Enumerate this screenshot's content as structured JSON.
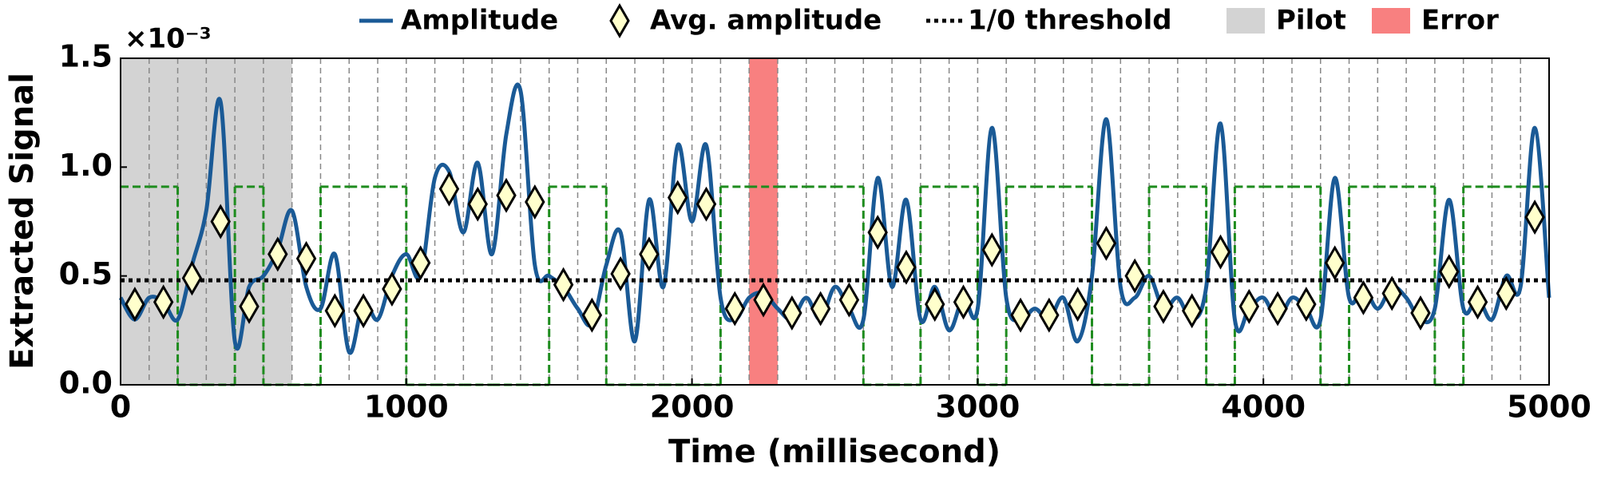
{
  "chart_data": {
    "type": "line",
    "x_label": "Time (millisecond)",
    "y_label": "Extracted Signal",
    "y_offset_label": "×10⁻³",
    "xlim": [
      0,
      5000
    ],
    "ylim": [
      0,
      1.5
    ],
    "xticks": [
      0,
      1000,
      2000,
      3000,
      4000,
      5000
    ],
    "yticks": [
      {
        "value": 0,
        "label": "0.0"
      },
      0.5,
      {
        "value": 1,
        "label": "1.0"
      },
      1.5
    ],
    "spans": [
      {
        "name": "Pilot",
        "x": [
          0,
          600
        ],
        "color": "#d3d3d3"
      },
      {
        "name": "Error",
        "x": [
          2200,
          2300
        ],
        "color": "#f88080"
      }
    ],
    "series": [
      {
        "name": "Amplitude",
        "color": "#1a5a96",
        "style": "smooth",
        "x": [
          0,
          50,
          100,
          150,
          200,
          250,
          300,
          350,
          400,
          450,
          500,
          550,
          600,
          650,
          700,
          750,
          800,
          850,
          900,
          950,
          1000,
          1050,
          1100,
          1150,
          1200,
          1250,
          1300,
          1350,
          1400,
          1450,
          1500,
          1550,
          1600,
          1650,
          1700,
          1750,
          1800,
          1850,
          1900,
          1950,
          2000,
          2050,
          2100,
          2150,
          2200,
          2250,
          2300,
          2350,
          2400,
          2450,
          2500,
          2550,
          2600,
          2650,
          2700,
          2750,
          2800,
          2850,
          2900,
          2950,
          3000,
          3050,
          3100,
          3150,
          3200,
          3250,
          3300,
          3350,
          3400,
          3450,
          3500,
          3550,
          3600,
          3650,
          3700,
          3750,
          3800,
          3850,
          3900,
          3950,
          4000,
          4050,
          4100,
          4150,
          4200,
          4250,
          4300,
          4350,
          4400,
          4450,
          4500,
          4550,
          4600,
          4650,
          4700,
          4750,
          4800,
          4850,
          4900,
          4950,
          5000
        ],
        "values": [
          0.4,
          0.3,
          0.4,
          0.38,
          0.3,
          0.55,
          0.8,
          1.3,
          0.2,
          0.45,
          0.5,
          0.62,
          0.8,
          0.45,
          0.35,
          0.6,
          0.15,
          0.38,
          0.3,
          0.5,
          0.6,
          0.5,
          0.95,
          0.98,
          0.7,
          1.02,
          0.6,
          1.15,
          1.35,
          0.55,
          0.5,
          0.45,
          0.35,
          0.28,
          0.55,
          0.7,
          0.2,
          0.85,
          0.45,
          1.1,
          0.75,
          1.1,
          0.4,
          0.3,
          0.4,
          0.42,
          0.35,
          0.3,
          0.4,
          0.3,
          0.45,
          0.35,
          0.3,
          0.95,
          0.45,
          0.85,
          0.3,
          0.45,
          0.25,
          0.4,
          0.35,
          1.18,
          0.4,
          0.3,
          0.35,
          0.3,
          0.4,
          0.2,
          0.5,
          1.22,
          0.45,
          0.4,
          0.5,
          0.35,
          0.4,
          0.3,
          0.45,
          1.2,
          0.3,
          0.35,
          0.4,
          0.3,
          0.4,
          0.35,
          0.3,
          0.95,
          0.4,
          0.45,
          0.35,
          0.45,
          0.4,
          0.3,
          0.35,
          0.85,
          0.35,
          0.4,
          0.3,
          0.5,
          0.45,
          1.18,
          0.4
        ]
      },
      {
        "name": "Avg. amplitude",
        "color": "#ffffcc",
        "style": "diamond",
        "x": [
          50,
          150,
          250,
          350,
          450,
          550,
          650,
          750,
          850,
          950,
          1050,
          1150,
          1250,
          1350,
          1450,
          1550,
          1650,
          1750,
          1850,
          1950,
          2050,
          2150,
          2250,
          2350,
          2450,
          2550,
          2650,
          2750,
          2850,
          2950,
          3050,
          3150,
          3250,
          3350,
          3450,
          3550,
          3650,
          3750,
          3850,
          3950,
          4050,
          4150,
          4250,
          4350,
          4450,
          4550,
          4650,
          4750,
          4850,
          4950
        ],
        "values": [
          0.37,
          0.38,
          0.49,
          0.75,
          0.36,
          0.6,
          0.58,
          0.34,
          0.34,
          0.44,
          0.56,
          0.9,
          0.83,
          0.87,
          0.84,
          0.46,
          0.32,
          0.51,
          0.6,
          0.86,
          0.83,
          0.35,
          0.39,
          0.33,
          0.35,
          0.39,
          0.7,
          0.54,
          0.37,
          0.38,
          0.62,
          0.32,
          0.32,
          0.37,
          0.65,
          0.5,
          0.36,
          0.34,
          0.61,
          0.36,
          0.35,
          0.37,
          0.56,
          0.4,
          0.42,
          0.33,
          0.52,
          0.38,
          0.42,
          0.77
        ]
      },
      {
        "name": "1/0 threshold",
        "color": "#000000",
        "style": "hline",
        "y": 0.48
      },
      {
        "color": "#1e8c1e",
        "style": "step",
        "x": [
          0,
          100,
          200,
          300,
          400,
          500,
          600,
          700,
          800,
          900,
          1000,
          1100,
          1200,
          1300,
          1400,
          1500,
          1600,
          1700,
          1800,
          1900,
          2000,
          2100,
          2200,
          2300,
          2400,
          2500,
          2600,
          2700,
          2800,
          2900,
          3000,
          3100,
          3200,
          3300,
          3400,
          3500,
          3600,
          3700,
          3800,
          3900,
          4000,
          4100,
          4200,
          4300,
          4400,
          4500,
          4600,
          4700,
          4800,
          4900
        ],
        "values": [
          0.91,
          0.91,
          0,
          0,
          0.91,
          0,
          0,
          0.91,
          0.91,
          0.91,
          0,
          0,
          0,
          0,
          0,
          0.91,
          0.91,
          0,
          0,
          0,
          0,
          0.91,
          0.91,
          0.91,
          0.91,
          0.91,
          0,
          0,
          0.91,
          0.91,
          0,
          0.91,
          0.91,
          0.91,
          0,
          0,
          0.91,
          0.91,
          0,
          0.91,
          0.91,
          0.91,
          0,
          0.91,
          0.91,
          0.91,
          0,
          0.91,
          0.91,
          0.91
        ]
      }
    ]
  }
}
